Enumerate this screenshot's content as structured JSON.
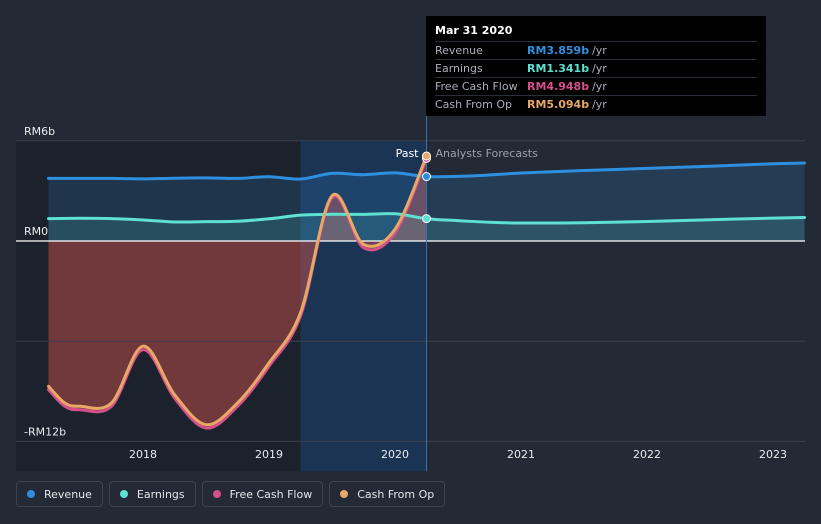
{
  "chart_data": {
    "type": "line",
    "x_ticks": [
      "2018",
      "2019",
      "2020",
      "2021",
      "2022",
      "2023"
    ],
    "y_labels": [
      "RM6b",
      "RM0",
      "-RM12b"
    ],
    "ylim": [
      -12,
      6
    ],
    "past_label": "Past",
    "forecast_label": "Analysts Forecasts",
    "series": [
      {
        "name": "Revenue",
        "color": "#2f8fdf",
        "x": [
          2017.25,
          2017.5,
          2017.75,
          2018.0,
          2018.25,
          2018.5,
          2018.75,
          2019.0,
          2019.25,
          2019.5,
          2019.75,
          2020.0,
          2020.25,
          2020.5,
          2020.75,
          2021.0,
          2021.5,
          2022.0,
          2022.5,
          2023.0,
          2023.25
        ],
        "y": [
          3.75,
          3.75,
          3.75,
          3.72,
          3.76,
          3.78,
          3.75,
          3.85,
          3.71,
          4.05,
          3.97,
          4.08,
          3.86,
          3.87,
          3.95,
          4.07,
          4.22,
          4.35,
          4.48,
          4.62,
          4.67
        ]
      },
      {
        "name": "Earnings",
        "color": "#5ee0d2",
        "x": [
          2017.25,
          2017.5,
          2017.75,
          2018.0,
          2018.25,
          2018.5,
          2018.75,
          2019.0,
          2019.25,
          2019.5,
          2019.75,
          2020.0,
          2020.25,
          2020.5,
          2020.75,
          2021.0,
          2021.5,
          2022.0,
          2022.5,
          2023.0,
          2023.25
        ],
        "y": [
          1.34,
          1.36,
          1.34,
          1.26,
          1.14,
          1.16,
          1.18,
          1.33,
          1.55,
          1.6,
          1.59,
          1.63,
          1.34,
          1.22,
          1.12,
          1.08,
          1.09,
          1.17,
          1.27,
          1.37,
          1.41
        ]
      },
      {
        "name": "Free Cash Flow",
        "color": "#d4508a",
        "x": [
          2017.25,
          2017.38,
          2017.5,
          2017.75,
          2018.0,
          2018.25,
          2018.5,
          2018.75,
          2019.0,
          2019.25,
          2019.5,
          2019.75,
          2020.0,
          2020.25
        ],
        "y": [
          -8.9,
          -9.9,
          -10.1,
          -9.9,
          -6.5,
          -9.4,
          -11.2,
          -9.9,
          -7.5,
          -4.5,
          2.6,
          -0.4,
          0.5,
          4.95
        ]
      },
      {
        "name": "Cash From Op",
        "color": "#e8a866",
        "x": [
          2017.25,
          2017.38,
          2017.5,
          2017.75,
          2018.0,
          2018.25,
          2018.5,
          2018.75,
          2019.0,
          2019.25,
          2019.5,
          2019.75,
          2020.0,
          2020.25
        ],
        "y": [
          -8.7,
          -9.7,
          -9.9,
          -9.7,
          -6.3,
          -9.2,
          -11.0,
          -9.7,
          -7.3,
          -4.3,
          2.7,
          -0.2,
          0.7,
          5.09
        ]
      }
    ],
    "past_end_x": 2020.25,
    "highlight_start_x": 2019.25
  },
  "tooltip": {
    "date": "Mar 31 2020",
    "rows": [
      {
        "name": "Revenue",
        "value": "RM3.859b",
        "unit": "/yr",
        "color": "#2f8fdf"
      },
      {
        "name": "Earnings",
        "value": "RM1.341b",
        "unit": "/yr",
        "color": "#5ee0d2"
      },
      {
        "name": "Free Cash Flow",
        "value": "RM4.948b",
        "unit": "/yr",
        "color": "#d4508a"
      },
      {
        "name": "Cash From Op",
        "value": "RM5.094b",
        "unit": "/yr",
        "color": "#e8a866"
      }
    ]
  },
  "legend": [
    {
      "label": "Revenue",
      "color": "#2f8fdf"
    },
    {
      "label": "Earnings",
      "color": "#5ee0d2"
    },
    {
      "label": "Free Cash Flow",
      "color": "#d4508a"
    },
    {
      "label": "Cash From Op",
      "color": "#e8a866"
    }
  ]
}
